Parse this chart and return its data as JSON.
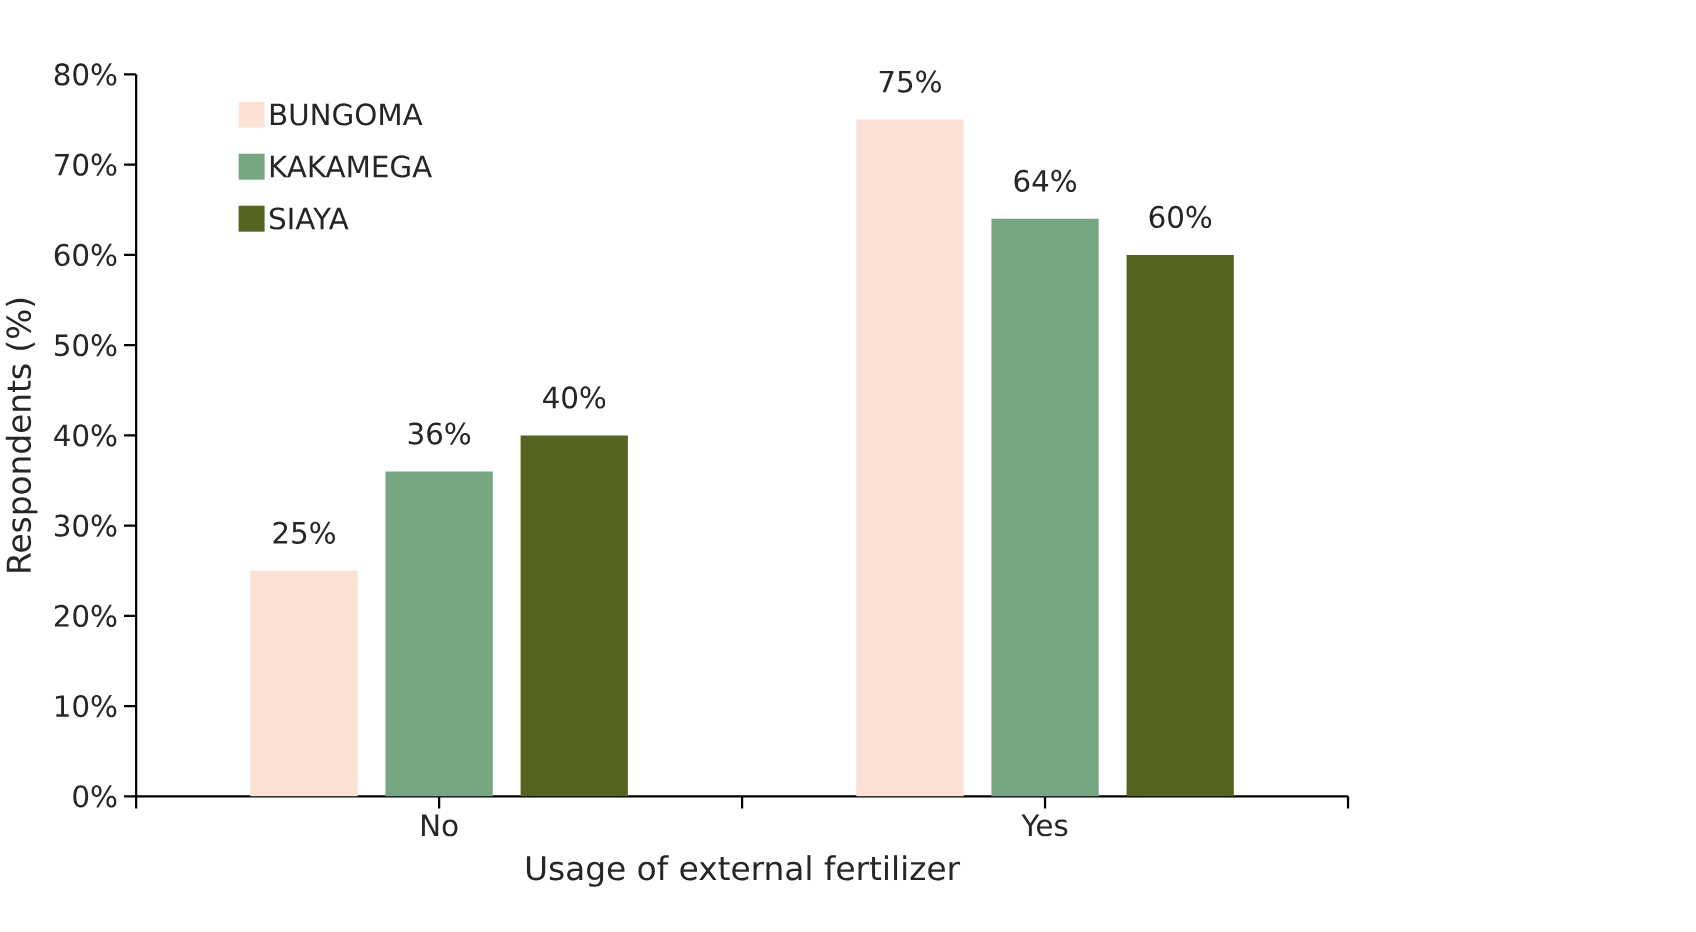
{
  "chart_data": {
    "type": "bar",
    "xlabel": "Usage of external fertilizer",
    "ylabel": "Respondents (%)",
    "categories": [
      "No",
      "Yes"
    ],
    "series": [
      {
        "name": "BUNGOMA",
        "color": "#fbe1d6",
        "values": [
          25,
          75
        ],
        "value_labels": [
          "25%",
          "75%"
        ]
      },
      {
        "name": "KAKAMEGA",
        "color": "#77a682",
        "values": [
          36,
          64
        ],
        "value_labels": [
          "36%",
          "64%"
        ]
      },
      {
        "name": "SIAYA",
        "color": "#556521",
        "values": [
          40,
          60
        ],
        "value_labels": [
          "40%",
          "60%"
        ]
      }
    ],
    "ylim": [
      0,
      80
    ],
    "yticks": [
      {
        "value": 0,
        "label": "0%"
      },
      {
        "value": 10,
        "label": "10%"
      },
      {
        "value": 20,
        "label": "20%"
      },
      {
        "value": 30,
        "label": "30%"
      },
      {
        "value": 40,
        "label": "40%"
      },
      {
        "value": 50,
        "label": "50%"
      },
      {
        "value": 60,
        "label": "60%"
      },
      {
        "value": 70,
        "label": "70%"
      },
      {
        "value": 80,
        "label": "80%"
      }
    ],
    "legend": "top left",
    "grid": false
  }
}
